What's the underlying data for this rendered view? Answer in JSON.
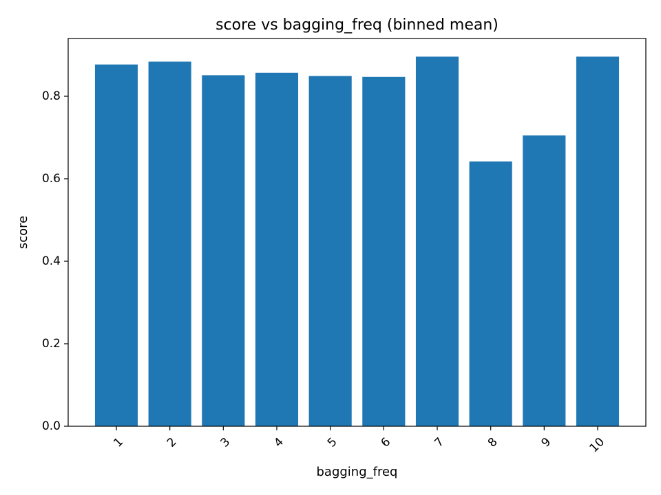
{
  "chart_data": {
    "type": "bar",
    "title": "score vs bagging_freq (binned mean)",
    "xlabel": "bagging_freq",
    "ylabel": "score",
    "categories": [
      "1",
      "2",
      "3",
      "4",
      "5",
      "6",
      "7",
      "8",
      "9",
      "10"
    ],
    "values": [
      0.877,
      0.884,
      0.851,
      0.857,
      0.849,
      0.847,
      0.896,
      0.642,
      0.705,
      0.896
    ],
    "ylim": [
      0,
      0.94
    ],
    "yticks": [
      0.0,
      0.2,
      0.4,
      0.6,
      0.8
    ],
    "ytick_labels": [
      "0.0",
      "0.2",
      "0.4",
      "0.6",
      "0.8"
    ],
    "grid": false,
    "colors": {
      "bar": "#1f77b4"
    }
  }
}
